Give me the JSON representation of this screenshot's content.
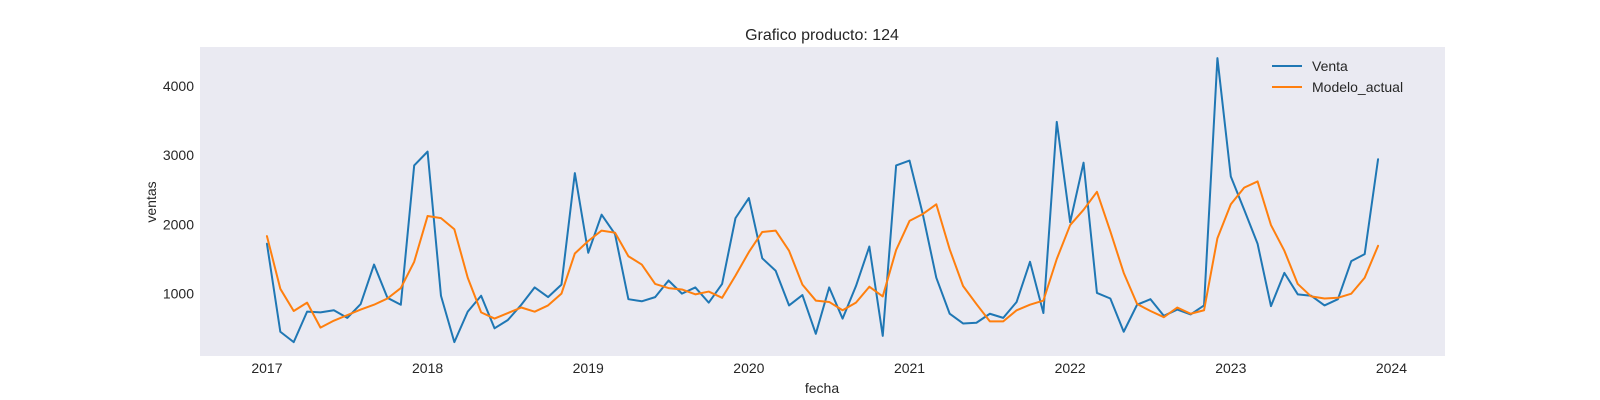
{
  "chart_data": {
    "type": "line",
    "title": "Grafico producto: 124",
    "xlabel": "fecha",
    "ylabel": "ventas",
    "x_start": "2017-01",
    "x_frequency": "monthly",
    "xlim": [
      "2016-08",
      "2024-05"
    ],
    "ylim": [
      100,
      4560
    ],
    "xticks": [
      "2017",
      "2018",
      "2019",
      "2020",
      "2021",
      "2022",
      "2023",
      "2024"
    ],
    "yticks": [
      1000,
      2000,
      3000,
      4000
    ],
    "grid": false,
    "background": "#eaeaf2",
    "legend": {
      "position": "top-right"
    },
    "series": [
      {
        "name": "Venta",
        "color": "#1f77b4",
        "values": [
          1720,
          450,
          300,
          740,
          730,
          760,
          650,
          850,
          1420,
          940,
          840,
          2850,
          3050,
          970,
          300,
          740,
          970,
          500,
          620,
          840,
          1090,
          950,
          1130,
          2740,
          1590,
          2140,
          1860,
          920,
          890,
          950,
          1190,
          1000,
          1090,
          870,
          1140,
          2090,
          2380,
          1510,
          1330,
          830,
          980,
          420,
          1090,
          640,
          1110,
          1680,
          390,
          2850,
          2920,
          2140,
          1230,
          710,
          570,
          580,
          710,
          650,
          880,
          1460,
          720,
          3480,
          2030,
          2890,
          1010,
          930,
          450,
          840,
          920,
          680,
          770,
          700,
          830,
          4400,
          2690,
          2210,
          1720,
          820,
          1300,
          990,
          970,
          830,
          920,
          1470,
          1570,
          2940
        ]
      },
      {
        "name": "Modelo_actual",
        "color": "#ff7f0e",
        "values": [
          1830,
          1070,
          750,
          870,
          510,
          610,
          690,
          770,
          840,
          930,
          1080,
          1460,
          2120,
          2090,
          1930,
          1230,
          730,
          640,
          720,
          800,
          740,
          830,
          1000,
          1580,
          1760,
          1910,
          1880,
          1540,
          1420,
          1140,
          1080,
          1060,
          990,
          1030,
          940,
          1260,
          1600,
          1890,
          1910,
          1620,
          1130,
          900,
          880,
          760,
          870,
          1100,
          960,
          1630,
          2050,
          2150,
          2290,
          1640,
          1110,
          850,
          600,
          600,
          760,
          840,
          900,
          1500,
          1990,
          2210,
          2470,
          1900,
          1300,
          850,
          750,
          660,
          800,
          710,
          760,
          1800,
          2290,
          2530,
          2620,
          1990,
          1620,
          1140,
          960,
          930,
          940,
          1000,
          1230,
          1690
        ]
      }
    ]
  }
}
